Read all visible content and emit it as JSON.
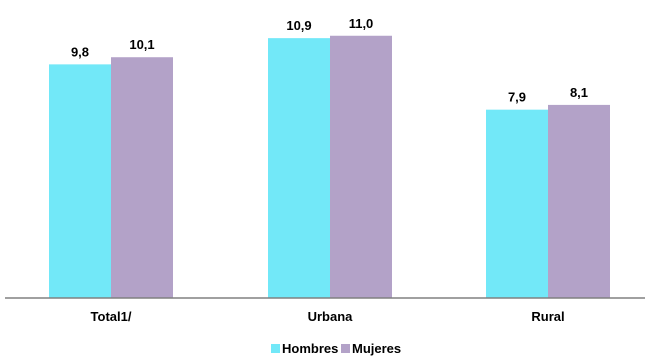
{
  "chart_data": {
    "type": "bar",
    "categories": [
      "Total1/",
      "Urbana",
      "Rural"
    ],
    "series": [
      {
        "name": "Hombres",
        "values": [
          9.8,
          10.9,
          7.9
        ],
        "labels": [
          "9,8",
          "10,9",
          "7,9"
        ],
        "color": "#72e8f8"
      },
      {
        "name": "Mujeres",
        "values": [
          10.1,
          11.0,
          8.1
        ],
        "labels": [
          "10,1",
          "11,0",
          "8,1"
        ],
        "color": "#b3a2c8"
      }
    ],
    "ylim": [
      0,
      12.5
    ],
    "grid": false,
    "legend_position": "bottom",
    "axis_color": "#808080"
  }
}
